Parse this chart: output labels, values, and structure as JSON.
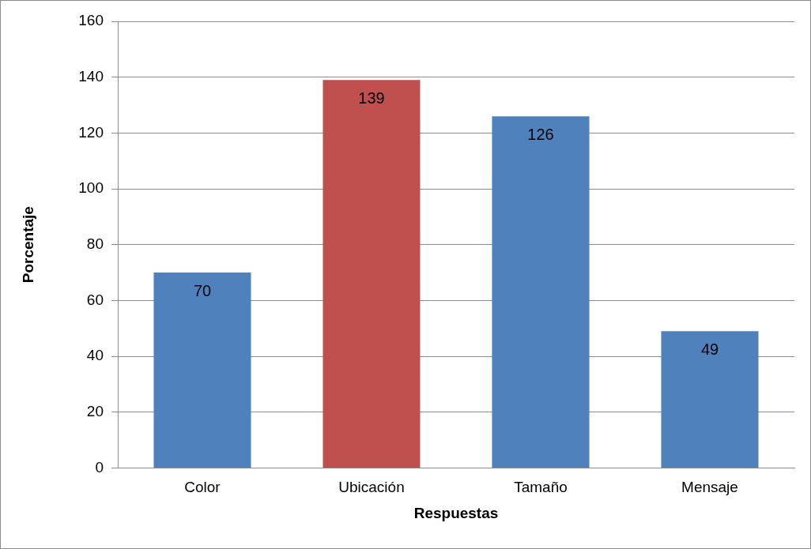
{
  "chart_data": {
    "type": "bar",
    "xlabel": "Respuestas",
    "ylabel": "Porcentaje",
    "categories": [
      "Color",
      "Ubicación",
      "Tamaño",
      "Mensaje"
    ],
    "values": [
      70,
      139,
      126,
      49
    ],
    "colors": [
      "#4f81bd",
      "#c0504d",
      "#4f81bd",
      "#4f81bd"
    ],
    "ylim": [
      0,
      160
    ],
    "yticks": [
      0,
      20,
      40,
      60,
      80,
      100,
      120,
      140,
      160
    ],
    "grid": "y",
    "legend": false,
    "data_labels": true
  }
}
